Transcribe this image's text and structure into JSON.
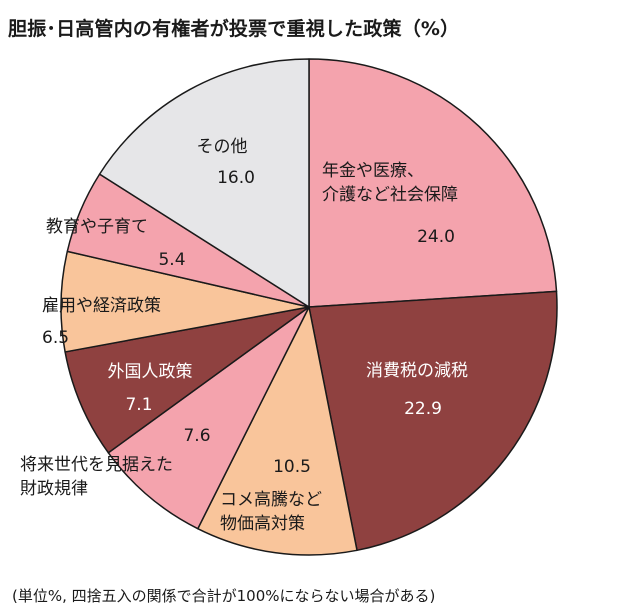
{
  "title": "胆振･日高管内の有権者が投票で重視した政策（%）",
  "note": "(単位%, 四捨五入の関係で合計が100%にならない場合がある)",
  "chart_data": {
    "type": "pie",
    "title": "胆振･日高管内の有権者が投票で重視した政策（%）",
    "unit": "%",
    "start": "12 o'clock",
    "direction": "clockwise",
    "slices": [
      {
        "label_lines": [
          "年金や医療、",
          "介護など社会保障"
        ],
        "value": 24.0,
        "value_text": "24.0",
        "color": "#f4a3ad",
        "text_color": "#1a1a1a"
      },
      {
        "label_lines": [
          "消費税の減税"
        ],
        "value": 22.9,
        "value_text": "22.9",
        "color": "#8f4140",
        "text_color": "#ffffff"
      },
      {
        "label_lines": [
          "コメ高騰など",
          "物価高対策"
        ],
        "value": 10.5,
        "value_text": "10.5",
        "color": "#f9c59b",
        "text_color": "#1a1a1a"
      },
      {
        "label_lines": [
          "将来世代を見据えた",
          "財政規律"
        ],
        "value": 7.6,
        "value_text": "7.6",
        "color": "#f4a3ad",
        "text_color": "#1a1a1a"
      },
      {
        "label_lines": [
          "外国人政策"
        ],
        "value": 7.1,
        "value_text": "7.1",
        "color": "#8f4140",
        "text_color": "#ffffff"
      },
      {
        "label_lines": [
          "雇用や経済政策"
        ],
        "value": 6.5,
        "value_text": "6.5",
        "color": "#f9c59b",
        "text_color": "#1a1a1a"
      },
      {
        "label_lines": [
          "教育や子育て"
        ],
        "value": 5.4,
        "value_text": "5.4",
        "color": "#f4a3ad",
        "text_color": "#1a1a1a"
      },
      {
        "label_lines": [
          "その他"
        ],
        "value": 16.0,
        "value_text": "16.0",
        "color": "#e6e6e8",
        "text_color": "#1a1a1a"
      }
    ]
  }
}
